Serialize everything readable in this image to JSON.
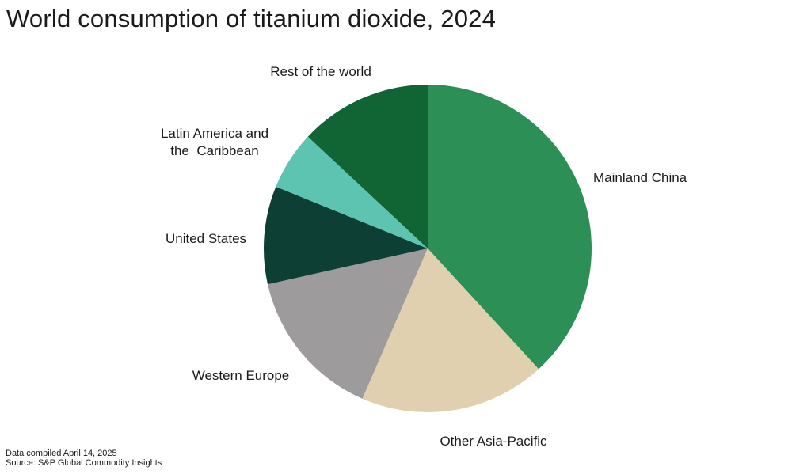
{
  "chart_data": {
    "type": "pie",
    "title": "World consumption of titanium dioxide, 2024",
    "slices": [
      {
        "label": "Mainland China",
        "value": 39.5,
        "color": "#2c8f55"
      },
      {
        "label": "Other Asia-Pacific",
        "value": 19.0,
        "color": "#e0d0b0"
      },
      {
        "label": "Western Europe",
        "value": 15.5,
        "color": "#9d9b9c"
      },
      {
        "label": "United States",
        "value": 10.0,
        "color": "#0d3f34"
      },
      {
        "label": "Latin America and the  Caribbean",
        "value": 6.0,
        "color": "#5ec4b2"
      },
      {
        "label": "Rest of the world",
        "value": 13.5,
        "color": "#116535"
      }
    ],
    "start_angle": "12 o'clock",
    "direction": "clockwise",
    "legend": "none (direct labels)"
  },
  "notes": {
    "compiled": "Data compiled April 14, 2025",
    "source": "Source: S&P Global Commodity Insights"
  }
}
